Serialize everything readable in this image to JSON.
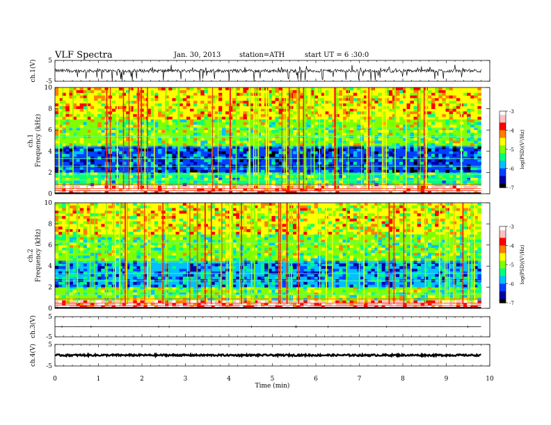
{
  "header": {
    "title": "VLF Spectra",
    "date": "Jan. 30, 2013",
    "station": "station=ATH",
    "start": "start UT = 6 :30:0"
  },
  "colors": {
    "colormap": [
      "#000000",
      "#0000a0",
      "#0040ff",
      "#00c0ff",
      "#00ff80",
      "#80ff00",
      "#ffff00",
      "#ff8000",
      "#ff0000",
      "#ffc0c0",
      "#ffffff"
    ],
    "axis": "#000000"
  },
  "chart_data": [
    {
      "type": "line",
      "panel": "ch1-waveform",
      "ylabel": "ch.1(V)",
      "ylim": [
        -5,
        5
      ],
      "yticks": [
        "5",
        "-5"
      ],
      "xlim": [
        0,
        10
      ],
      "series_note": "noisy waveform centred near 0 V with spikes to about -5 V",
      "baseline": 0,
      "amplitude": [
        -5,
        3
      ]
    },
    {
      "type": "heatmap",
      "panel": "ch1-spectrogram",
      "ylabel": "ch.1\nFrequency (kHz)",
      "ylim": [
        0,
        10
      ],
      "yticks": [
        "0",
        "2",
        "4",
        "6",
        "8",
        "10"
      ],
      "xlim": [
        0,
        9.8
      ],
      "colorbar": {
        "label": "log(PSD)(V²/Hz)",
        "range": [
          -7,
          -3
        ],
        "ticks": [
          "-3",
          "-4",
          "-5",
          "-6",
          "-7"
        ]
      },
      "bands_khz": [
        {
          "from": 0.0,
          "to": 0.8,
          "level": -3.3
        },
        {
          "from": 0.8,
          "to": 2.0,
          "level": -5.3
        },
        {
          "from": 2.0,
          "to": 4.5,
          "level": -6.2
        },
        {
          "from": 4.5,
          "to": 7.0,
          "level": -5.0
        },
        {
          "from": 7.0,
          "to": 10.0,
          "level": -4.5
        }
      ]
    },
    {
      "type": "heatmap",
      "panel": "ch2-spectrogram",
      "ylabel": "ch.2\nFrequency (kHz)",
      "ylim": [
        0,
        10
      ],
      "yticks": [
        "0",
        "2",
        "4",
        "6",
        "8",
        "10"
      ],
      "xlim": [
        0,
        9.8
      ],
      "colorbar": {
        "label": "log(PSD)(V²/Hz)",
        "range": [
          -7,
          -3
        ],
        "ticks": [
          "-3",
          "-4",
          "-5",
          "-6",
          "-7"
        ]
      },
      "bands_khz": [
        {
          "from": 0.0,
          "to": 0.8,
          "level": -3.5
        },
        {
          "from": 0.8,
          "to": 2.0,
          "level": -5.1
        },
        {
          "from": 2.0,
          "to": 4.5,
          "level": -6.0
        },
        {
          "from": 4.5,
          "to": 7.0,
          "level": -5.1
        },
        {
          "from": 7.0,
          "to": 10.0,
          "level": -4.6
        }
      ]
    },
    {
      "type": "line",
      "panel": "ch3-waveform",
      "ylabel": "ch.3(V)",
      "ylim": [
        -5,
        5
      ],
      "yticks": [
        "5",
        "-5"
      ],
      "xlim": [
        0,
        10
      ],
      "baseline": 0,
      "amplitude": [
        -0.1,
        0.1
      ]
    },
    {
      "type": "line",
      "panel": "ch4-waveform",
      "ylabel": "ch.4(V)",
      "ylim": [
        -5,
        5
      ],
      "yticks": [
        "5",
        "-5"
      ],
      "xlim": [
        0,
        10
      ],
      "baseline": 0,
      "amplitude": [
        -0.4,
        0.4
      ]
    }
  ],
  "xaxis": {
    "label": "Time (min)",
    "ticks": [
      "0",
      "1",
      "2",
      "3",
      "4",
      "5",
      "6",
      "7",
      "8",
      "9",
      "10"
    ],
    "range": [
      0,
      10
    ]
  }
}
